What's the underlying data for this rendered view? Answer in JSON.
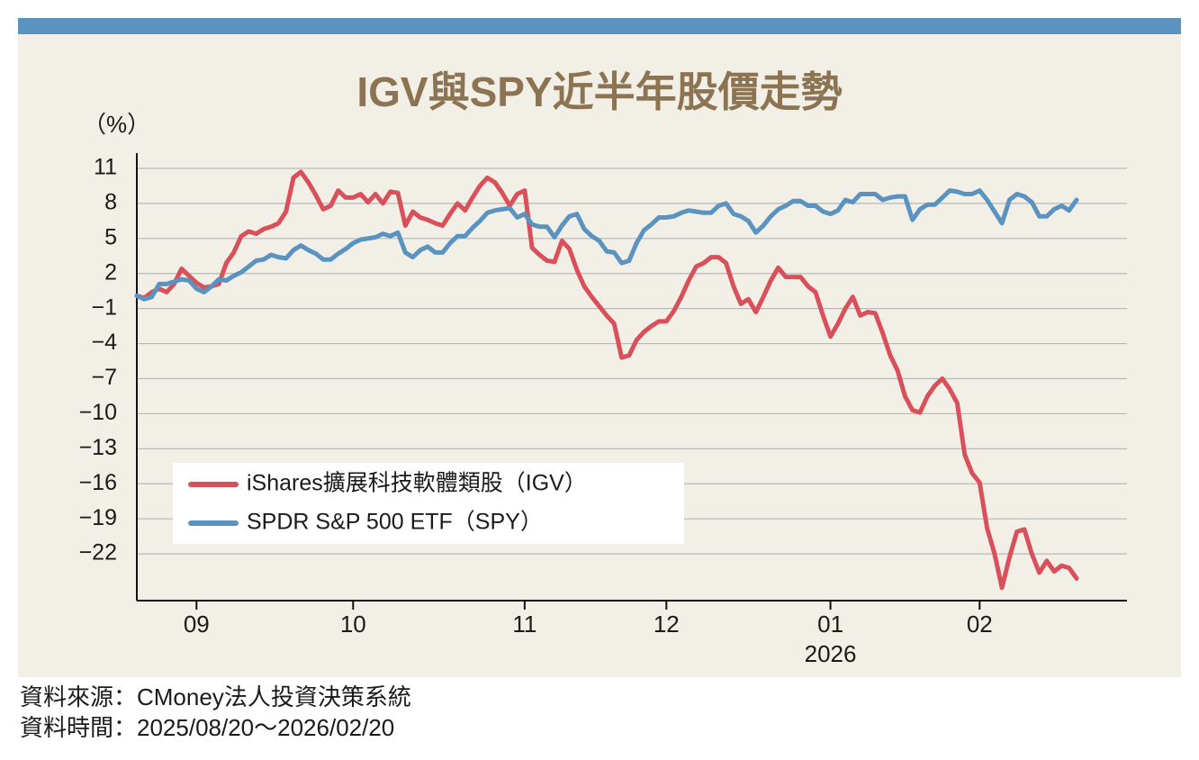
{
  "chart_data": {
    "type": "line",
    "title": "IGV與SPY近半年股價走勢",
    "y_unit": "（%）",
    "categories": [
      null,
      null,
      null,
      null,
      null,
      null,
      null,
      null,
      "09",
      null,
      null,
      null,
      null,
      null,
      null,
      null,
      null,
      null,
      null,
      null,
      null,
      null,
      null,
      null,
      null,
      null,
      null,
      null,
      null,
      "10",
      null,
      null,
      null,
      null,
      null,
      null,
      null,
      null,
      null,
      null,
      null,
      null,
      null,
      null,
      null,
      null,
      null,
      null,
      null,
      null,
      null,
      null,
      "11",
      null,
      null,
      null,
      null,
      null,
      null,
      null,
      null,
      null,
      null,
      null,
      null,
      null,
      null,
      null,
      null,
      null,
      null,
      "12",
      null,
      null,
      null,
      null,
      null,
      null,
      null,
      null,
      null,
      null,
      null,
      null,
      null,
      null,
      null,
      null,
      null,
      null,
      null,
      null,
      null,
      "01",
      null,
      null,
      null,
      null,
      null,
      null,
      null,
      null,
      null,
      null,
      null,
      null,
      null,
      null,
      null,
      null,
      null,
      null,
      null,
      "02",
      null,
      null,
      null,
      null,
      null,
      null,
      null,
      null,
      null,
      null,
      null,
      null,
      null
    ],
    "year_label": "2026",
    "series": [
      {
        "name": "iShares擴展科技軟體類股（IGV）",
        "color": "#d9505a",
        "values": [
          0.1,
          -0.1,
          0.4,
          0.7,
          0.4,
          1.1,
          2.4,
          1.8,
          1.2,
          0.8,
          0.9,
          1.1,
          2.9,
          3.8,
          5.2,
          5.6,
          5.4,
          5.8,
          6.0,
          6.3,
          7.3,
          10.2,
          10.7,
          9.8,
          8.7,
          7.5,
          7.8,
          9.1,
          8.5,
          8.5,
          8.8,
          8.1,
          8.8,
          8.0,
          9.0,
          8.9,
          6.1,
          7.3,
          6.8,
          6.6,
          6.3,
          6.1,
          7.1,
          8.0,
          7.4,
          8.5,
          9.5,
          10.2,
          9.8,
          8.9,
          7.8,
          8.8,
          9.1,
          4.2,
          3.6,
          3.1,
          3.0,
          4.8,
          4.1,
          2.3,
          0.9,
          0.0,
          -0.8,
          -1.6,
          -2.3,
          -5.2,
          -5.0,
          -3.7,
          -3.0,
          -2.5,
          -2.1,
          -2.1,
          -1.2,
          0.0,
          1.4,
          2.6,
          2.9,
          3.4,
          3.4,
          2.9,
          0.9,
          -0.6,
          -0.2,
          -1.3,
          0.0,
          1.4,
          2.5,
          1.7,
          1.7,
          1.7,
          0.9,
          0.4,
          -1.6,
          -3.4,
          -2.3,
          -1.0,
          0.0,
          -1.6,
          -1.3,
          -1.4,
          -3.1,
          -5.0,
          -6.3,
          -8.5,
          -9.7,
          -9.9,
          -8.5,
          -7.6,
          -7.0,
          -7.9,
          -9.1,
          -13.5,
          -15.1,
          -15.9,
          -19.8,
          -22.0,
          -24.9,
          -22.3,
          -20.1,
          -19.9,
          -22.0,
          -23.6,
          -22.6,
          -23.5,
          -23.0,
          -23.2,
          -24.1
        ]
      },
      {
        "name": "SPDR S&P 500 ETF（SPY）",
        "color": "#5b93c0",
        "values": [
          0.1,
          -0.2,
          0.0,
          1.1,
          1.1,
          1.3,
          1.5,
          1.4,
          0.7,
          0.4,
          0.9,
          1.5,
          1.4,
          1.8,
          2.1,
          2.6,
          3.1,
          3.2,
          3.6,
          3.4,
          3.3,
          4.0,
          4.4,
          4.0,
          3.7,
          3.2,
          3.2,
          3.7,
          4.1,
          4.6,
          4.9,
          5.0,
          5.1,
          5.4,
          5.2,
          5.5,
          3.8,
          3.4,
          4.0,
          4.3,
          3.8,
          3.8,
          4.6,
          5.2,
          5.2,
          5.9,
          6.5,
          7.2,
          7.4,
          7.5,
          7.6,
          6.8,
          7.1,
          6.2,
          6.0,
          6.0,
          5.1,
          6.1,
          6.9,
          7.1,
          5.8,
          5.2,
          4.8,
          3.9,
          3.8,
          2.9,
          3.1,
          4.6,
          5.7,
          6.2,
          6.8,
          6.8,
          6.9,
          7.2,
          7.4,
          7.3,
          7.2,
          7.2,
          7.8,
          8.0,
          7.1,
          6.9,
          6.5,
          5.5,
          6.1,
          6.9,
          7.5,
          7.8,
          8.2,
          8.2,
          7.8,
          7.8,
          7.3,
          7.1,
          7.4,
          8.3,
          8.1,
          8.8,
          8.8,
          8.8,
          8.3,
          8.5,
          8.6,
          8.6,
          6.6,
          7.5,
          7.9,
          7.9,
          8.5,
          9.1,
          9.0,
          8.8,
          8.8,
          9.1,
          8.3,
          7.3,
          6.3,
          8.3,
          8.8,
          8.6,
          8.1,
          6.9,
          6.9,
          7.5,
          7.8,
          7.4,
          8.3
        ]
      }
    ],
    "ylim": [
      -26,
      12
    ],
    "yticks": [
      11,
      8,
      5,
      2,
      {
        "value": -1,
        "label": "−1"
      },
      {
        "value": -4,
        "label": "−4"
      },
      {
        "value": -7,
        "label": "−7"
      },
      {
        "value": -10,
        "label": "−10"
      },
      {
        "value": -13,
        "label": "−13"
      },
      {
        "value": -16,
        "label": "−16"
      },
      {
        "value": -19,
        "label": "−19"
      },
      {
        "value": -22,
        "label": "−22"
      }
    ],
    "grid": true,
    "legend": "lower-left",
    "source": "資料來源：CMoney法人投資決策系統",
    "date_range": "資料時間：2025/08/20～2026/02/20"
  }
}
